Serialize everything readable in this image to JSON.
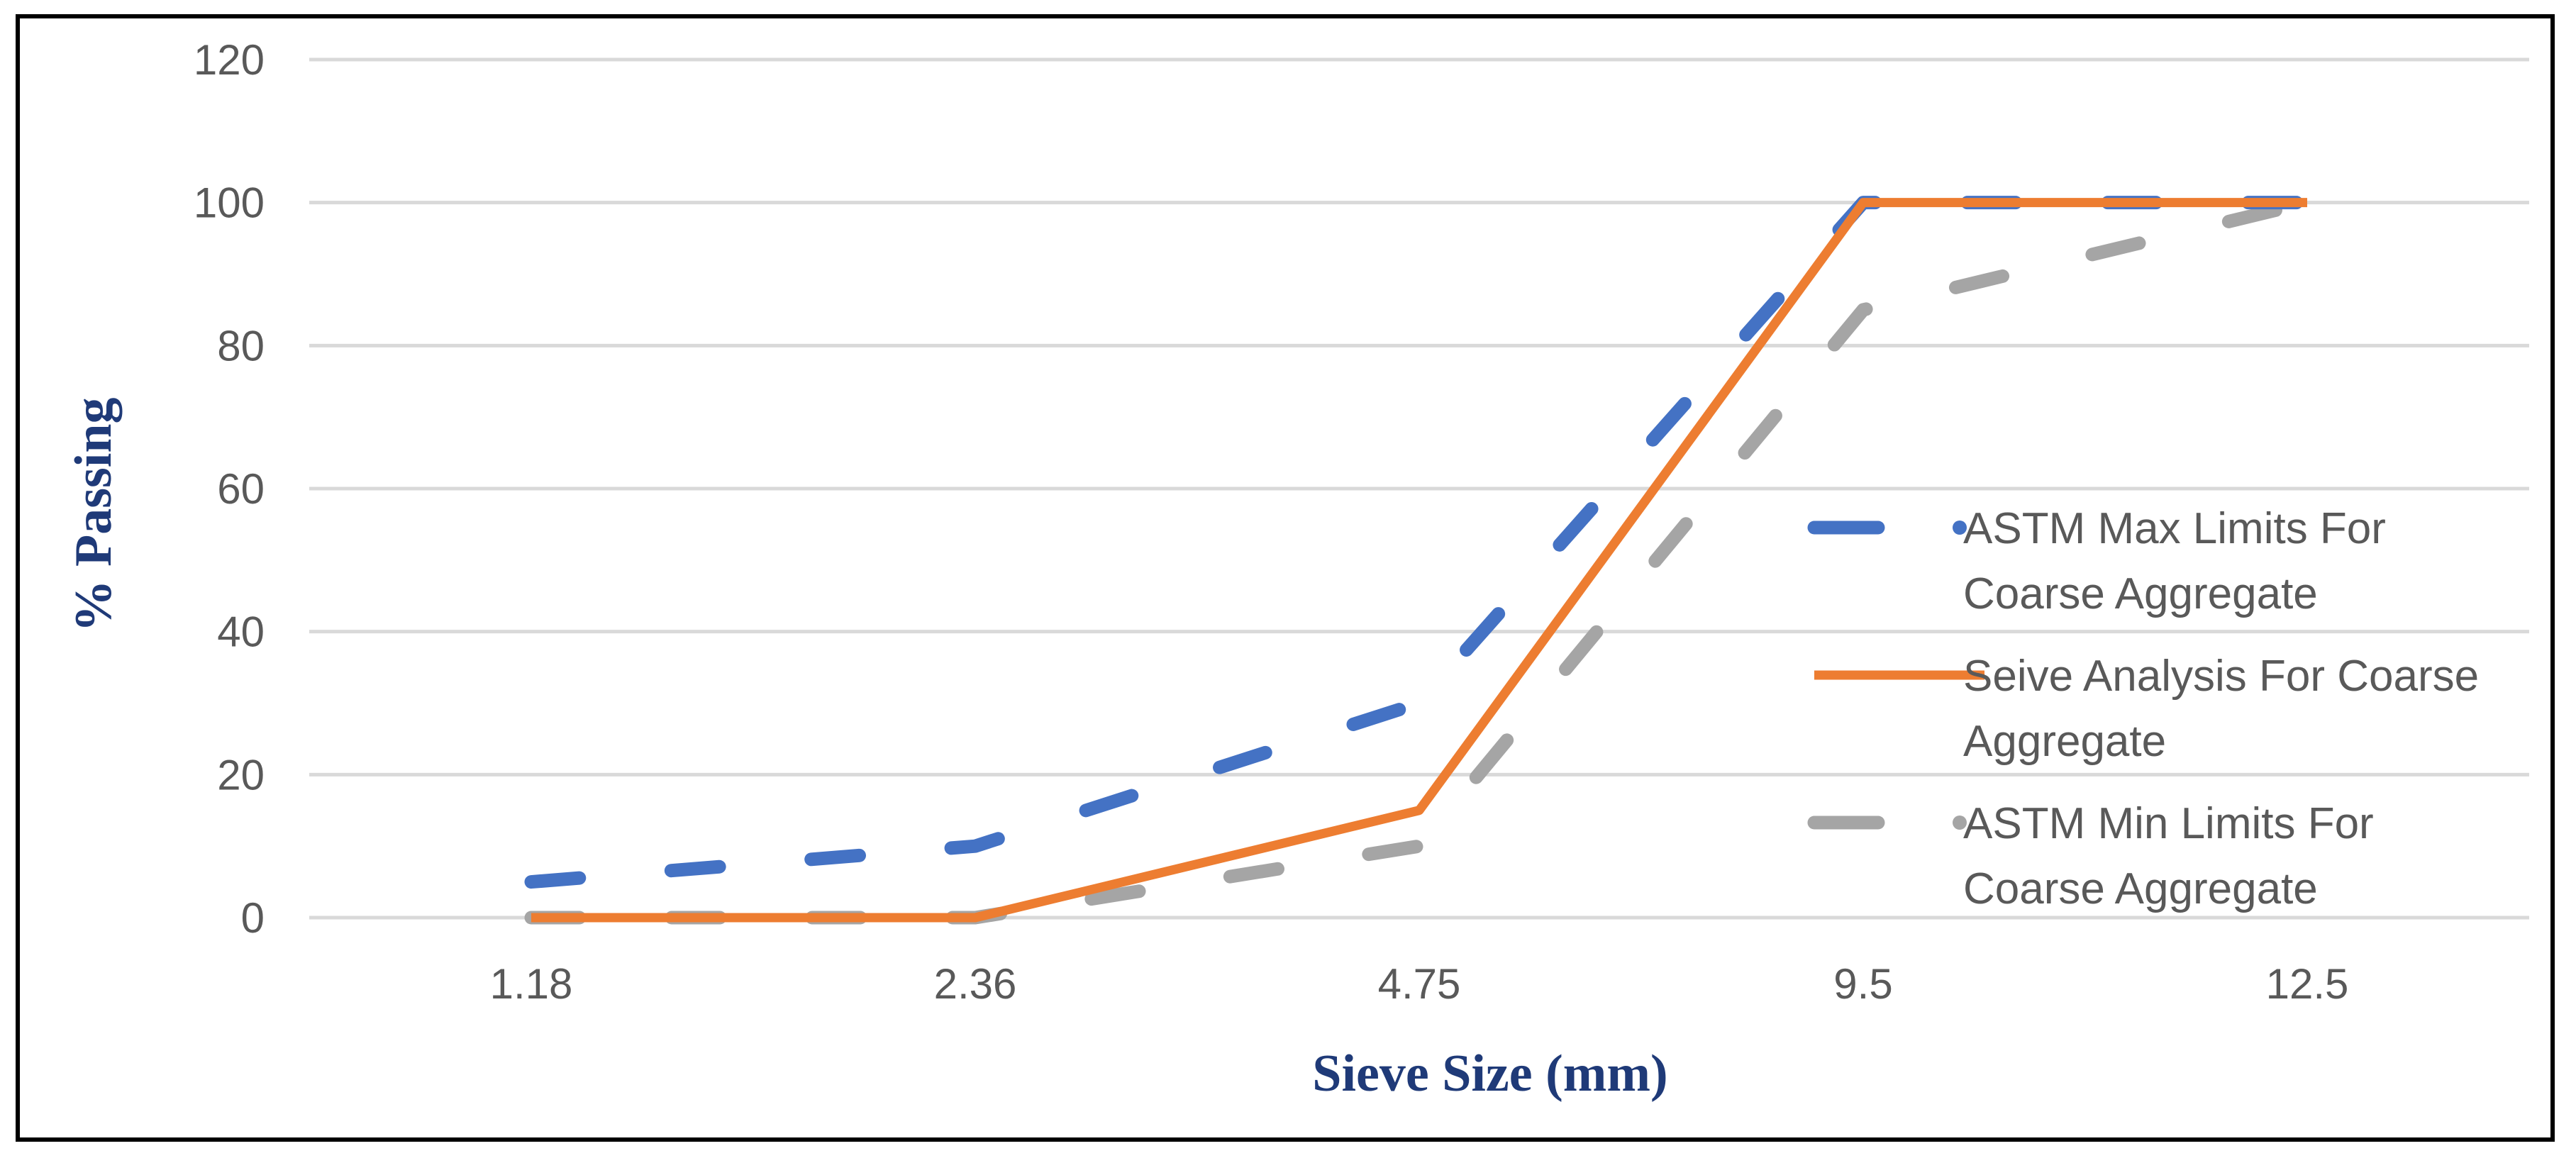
{
  "chart_data": {
    "type": "line",
    "title": "",
    "xlabel": "Sieve Size (mm)",
    "ylabel": "% Passing",
    "categories": [
      "1.18",
      "2.36",
      "4.75",
      "9.5",
      "12.5"
    ],
    "ylim": [
      0,
      120
    ],
    "yticks": [
      "0",
      "20",
      "40",
      "60",
      "80",
      "100",
      "120"
    ],
    "grid": true,
    "legend_position": "right",
    "series": [
      {
        "name": "ASTM Max Limits For Coarse Aggregate",
        "legend_lines": [
          "ASTM Max Limits For",
          "Coarse Aggregate"
        ],
        "values": [
          5,
          10,
          30,
          100,
          100
        ],
        "color": "#4472C4",
        "style": "dashed"
      },
      {
        "name": "Seive Analysis For Coarse Aggregate",
        "legend_lines": [
          "Seive Analysis For Coarse",
          "Aggregate"
        ],
        "values": [
          0,
          0,
          15,
          100,
          100
        ],
        "color": "#ED7D31",
        "style": "solid"
      },
      {
        "name": "ASTM Min Limits For Coarse Aggregate",
        "legend_lines": [
          "ASTM Min Limits For",
          "Coarse Aggregate"
        ],
        "values": [
          0,
          0,
          10,
          85,
          100
        ],
        "color": "#A5A5A5",
        "style": "dashed"
      }
    ],
    "colors": {
      "axis_title": "#1F3A78",
      "grid": "#D9D9D9",
      "tick_label": "#595959"
    }
  }
}
